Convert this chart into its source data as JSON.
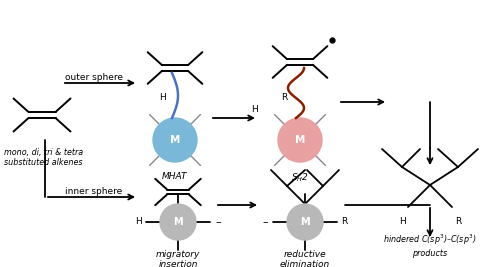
{
  "bg_color": "#ffffff",
  "blue_circle_color": "#7ab8d9",
  "pink_circle_color": "#e8a0a0",
  "gray_circle_color": "#b8b8b8",
  "blue_bond_color": "#4a72c4",
  "dark_red_color": "#8b2000",
  "black": "#000000",
  "gray_spoke": "#888888",
  "labels": {
    "outer_sphere": "outer sphere",
    "inner_sphere": "inner sphere",
    "mhat": "MHAT",
    "sh2": "S$_H$2",
    "migratory": "migratory\ninsertion",
    "reductive": "reductive\nelimination",
    "hindered": "hindered C(sp$^3$)–C(sp$^3$)\nproducts",
    "alkenes": "mono, di, tri & tetra\nsubstituted alkenes"
  },
  "figsize": [
    5.0,
    2.67
  ],
  "dpi": 100
}
